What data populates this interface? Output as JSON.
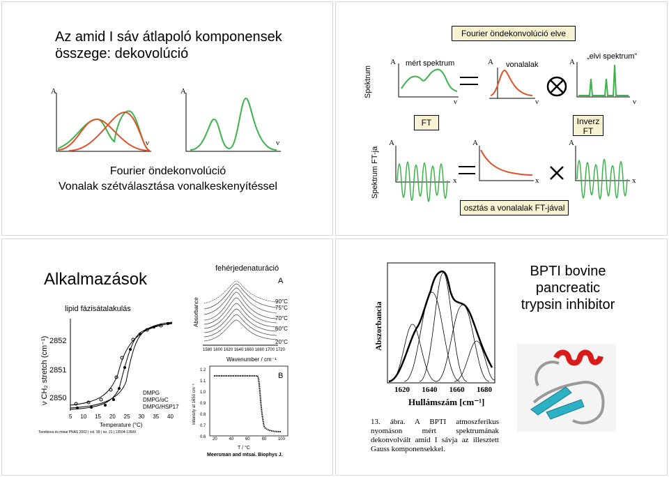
{
  "slide1": {
    "title_line1": "Az amid I sáv átlapoló komponensek",
    "title_line2": "összege: dekovolúció",
    "axis_a": "A",
    "axis_nu": "ν",
    "caption_line1": "Fourier öndekonvolúció",
    "caption_line2": "Vonalak szétválasztása vonalkeskenyítéssel"
  },
  "slide2": {
    "header": "Fourier öndekonvolúció elve",
    "row1_label": "Spektrum",
    "row2_label": "Spektrum FT-ja",
    "measured": "mért spektrum",
    "lineshapes": "vonalalak",
    "ideal": "„elvi spektrum”",
    "ft": "FT",
    "inverse_ft": "Inverz FT",
    "division": "osztás a vonalalak FT-jával",
    "axis_a": "A",
    "axis_nu": "ν",
    "axis_x": "x"
  },
  "slide3": {
    "title": "Alkalmazások",
    "lipid": "lipid fázisátalakulás",
    "denat": "fehérjedenaturáció",
    "ylabel": "ν CH₂ stretch (cm⁻¹)",
    "yticks": [
      "2852",
      "2851",
      "2850"
    ],
    "xticks": [
      "5",
      "10",
      "15",
      "20",
      "25",
      "30",
      "35",
      "40"
    ],
    "xlabel": "Temperature (°C)",
    "legend": [
      "DMPG",
      "DMPG/αC",
      "DMPG/HSP17"
    ],
    "ref1": "Tsvetkova és mtsai PNAS  2002 | vol. 99 | no. 21 | 13504-13509",
    "absorbance": "Absorbance",
    "panel_a": "A",
    "temps": [
      "90°C",
      "75°C",
      "70°C",
      "60°C",
      "20°C"
    ],
    "wn_ticks": [
      "1580",
      "1600",
      "1620",
      "1640",
      "1660",
      "1680",
      "1700",
      "1720"
    ],
    "wavenumber": "Wavenumber / cm⁻¹",
    "intensity": "Intensity at 1650 cm⁻¹",
    "panel_b": "B",
    "b_yticks": [
      "1.2",
      "1.1",
      "1.0",
      "0.9",
      "0.8",
      "0.7",
      "0.6"
    ],
    "b_xticks": [
      "20",
      "40",
      "60",
      "80",
      "100"
    ],
    "t_label": "T / °C",
    "ref2": "Meersman and mtsai. Biophys J."
  },
  "slide4": {
    "ylabel": "Abszorbancia",
    "xticks": [
      "1620",
      "1640",
      "1660",
      "1680"
    ],
    "xlabel": "Hullámszám [cm⁻¹]",
    "caption": "13. ábra. A BPTI atmoszferikus nyomáson mért spektrumának dekonvolvált amid I sávja az illesztett Gauss komponensekkel.",
    "title_line1": "BPTI bovine",
    "title_line2": "pancreatic",
    "title_line3": "trypsin inhibitor"
  },
  "colors": {
    "green": "#3cb34a",
    "red": "#e0522a",
    "boxfill": "#f7f3d2"
  }
}
